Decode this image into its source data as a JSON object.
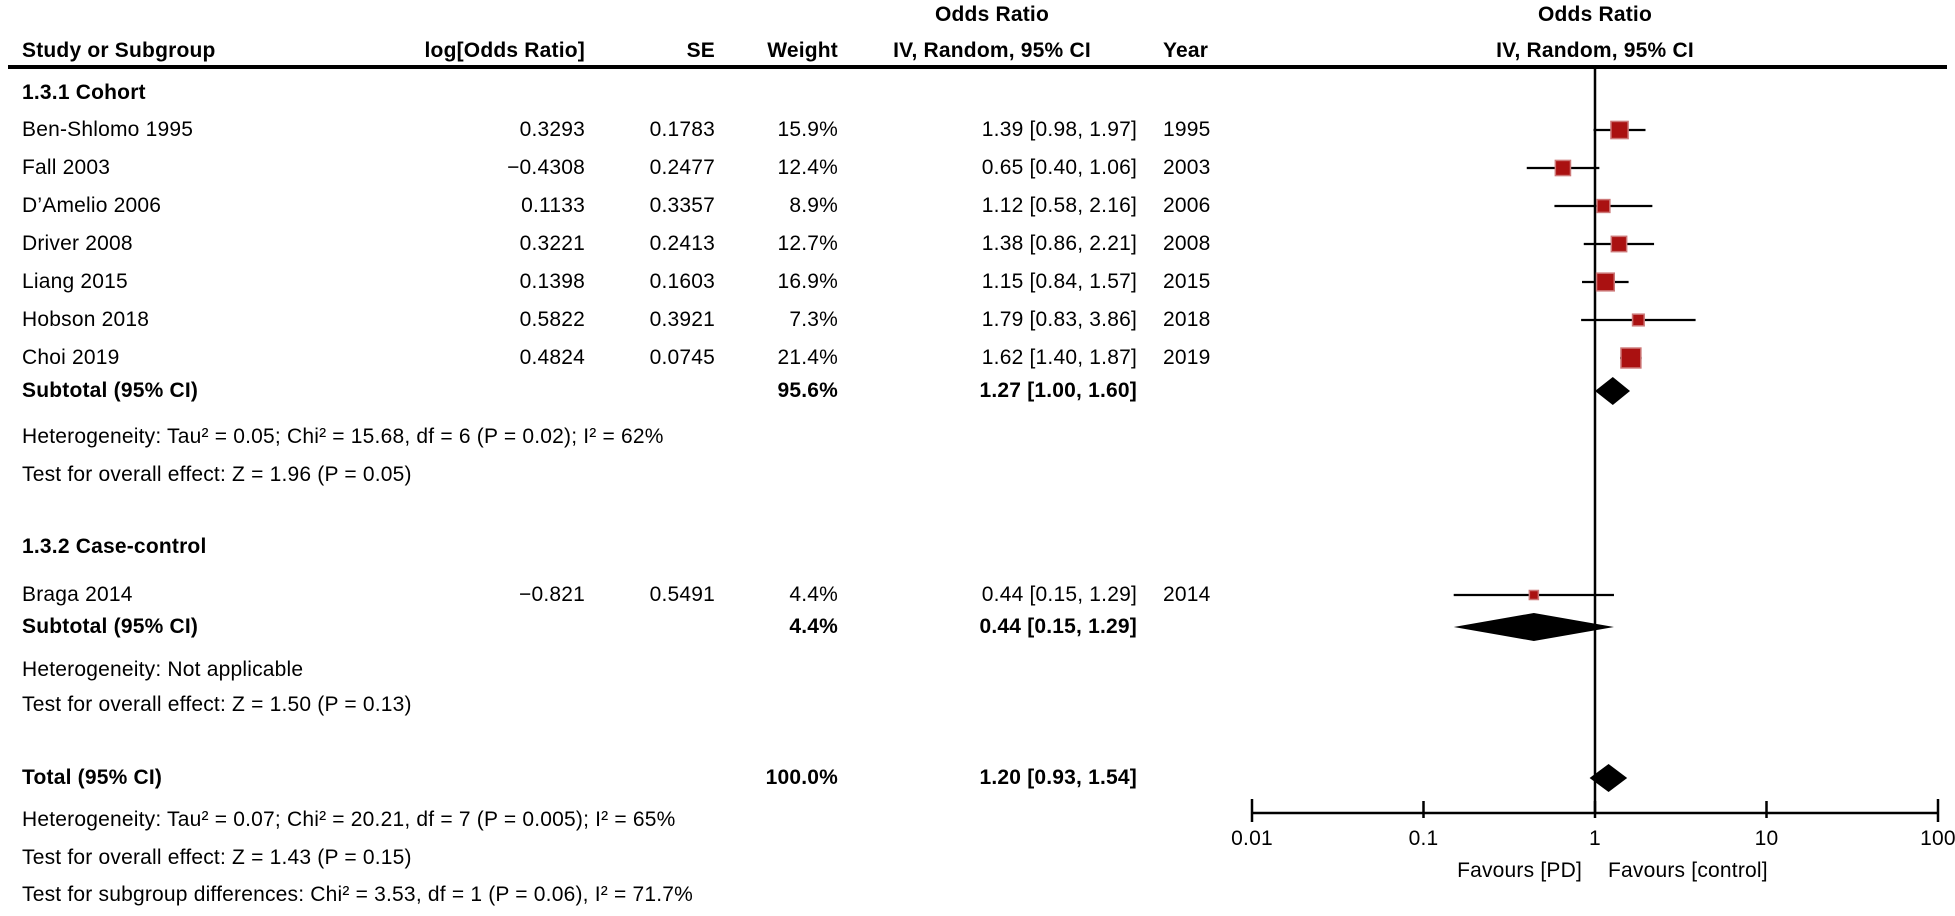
{
  "colors": {
    "background": "#ffffff",
    "text": "#000000",
    "line": "#000000",
    "marker_fill": "#aa1111",
    "marker_border": "#cc7777",
    "diamond_fill": "#000000"
  },
  "chart_data": {
    "type": "forest",
    "scale": "log",
    "columns": {
      "study": "Study or Subgroup",
      "logor": "log[Odds Ratio]",
      "se": "SE",
      "weight": "Weight",
      "ci": "IV, Random, 95% CI",
      "year": "Year"
    },
    "effect_header_left": "Odds Ratio",
    "effect_header_right": "Odds Ratio",
    "method_header_right": "IV, Random, 95% CI",
    "groups": [
      {
        "label": "1.3.1 Cohort",
        "studies": [
          {
            "study": "Ben-Shlomo 1995",
            "logor": "0.3293",
            "se": "0.1783",
            "weight_label": "15.9%",
            "weight": 15.9,
            "ci_label": "1.39 [0.98, 1.97]",
            "year": "1995",
            "or": 1.39,
            "lo": 0.98,
            "hi": 1.97
          },
          {
            "study": "Fall 2003",
            "logor": "−0.4308",
            "se": "0.2477",
            "weight_label": "12.4%",
            "weight": 12.4,
            "ci_label": "0.65 [0.40, 1.06]",
            "year": "2003",
            "or": 0.65,
            "lo": 0.4,
            "hi": 1.06
          },
          {
            "study": "D’Amelio 2006",
            "logor": "0.1133",
            "se": "0.3357",
            "weight_label": "8.9%",
            "weight": 8.9,
            "ci_label": "1.12 [0.58, 2.16]",
            "year": "2006",
            "or": 1.12,
            "lo": 0.58,
            "hi": 2.16
          },
          {
            "study": "Driver 2008",
            "logor": "0.3221",
            "se": "0.2413",
            "weight_label": "12.7%",
            "weight": 12.7,
            "ci_label": "1.38 [0.86, 2.21]",
            "year": "2008",
            "or": 1.38,
            "lo": 0.86,
            "hi": 2.21
          },
          {
            "study": "Liang 2015",
            "logor": "0.1398",
            "se": "0.1603",
            "weight_label": "16.9%",
            "weight": 16.9,
            "ci_label": "1.15 [0.84, 1.57]",
            "year": "2015",
            "or": 1.15,
            "lo": 0.84,
            "hi": 1.57
          },
          {
            "study": "Hobson 2018",
            "logor": "0.5822",
            "se": "0.3921",
            "weight_label": "7.3%",
            "weight": 7.3,
            "ci_label": "1.79 [0.83, 3.86]",
            "year": "2018",
            "or": 1.79,
            "lo": 0.83,
            "hi": 3.86
          },
          {
            "study": "Choi 2019",
            "logor": "0.4824",
            "se": "0.0745",
            "weight_label": "21.4%",
            "weight": 21.4,
            "ci_label": "1.62 [1.40, 1.87]",
            "year": "2019",
            "or": 1.62,
            "lo": 1.4,
            "hi": 1.87
          }
        ],
        "subtotal": {
          "label": "Subtotal (95% CI)",
          "weight_label": "95.6%",
          "ci_label": "1.27 [1.00, 1.60]",
          "or": 1.27,
          "lo": 1.0,
          "hi": 1.6
        },
        "heterogeneity": "Heterogeneity: Tau² = 0.05; Chi² = 15.68, df = 6 (P = 0.02); I² = 62%",
        "overall_effect": "Test for overall effect: Z = 1.96 (P = 0.05)"
      },
      {
        "label": "1.3.2 Case-control",
        "studies": [
          {
            "study": "Braga 2014",
            "logor": "−0.821",
            "se": "0.5491",
            "weight_label": "4.4%",
            "weight": 4.4,
            "ci_label": "0.44 [0.15, 1.29]",
            "year": "2014",
            "or": 0.44,
            "lo": 0.15,
            "hi": 1.29
          }
        ],
        "subtotal": {
          "label": "Subtotal (95% CI)",
          "weight_label": "4.4%",
          "ci_label": "0.44 [0.15, 1.29]",
          "or": 0.44,
          "lo": 0.15,
          "hi": 1.29
        },
        "heterogeneity": "Heterogeneity: Not applicable",
        "overall_effect": "Test for overall effect: Z = 1.50 (P = 0.13)"
      }
    ],
    "total": {
      "label": "Total (95% CI)",
      "weight_label": "100.0%",
      "ci_label": "1.20 [0.93, 1.54]",
      "or": 1.2,
      "lo": 0.93,
      "hi": 1.54
    },
    "footer_lines": [
      "Heterogeneity: Tau² = 0.07; Chi² = 20.21, df = 7 (P = 0.005); I² = 65%",
      "Test for overall effect: Z = 1.43 (P = 0.15)",
      "Test for subgroup differences: Chi² = 3.53, df = 1 (P = 0.06), I² = 71.7%"
    ],
    "axis": {
      "ticks": [
        0.01,
        0.1,
        1,
        10,
        100
      ],
      "tick_labels": [
        "0.01",
        "0.1",
        "1",
        "10",
        "100"
      ],
      "favours_left": "Favours [PD]",
      "favours_right": "Favours [control]"
    }
  }
}
